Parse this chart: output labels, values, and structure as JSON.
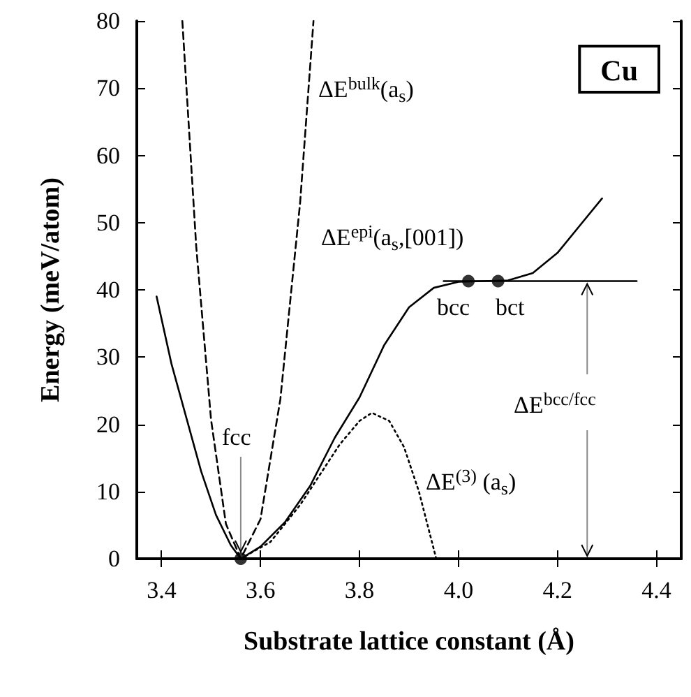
{
  "chart_data": {
    "type": "line",
    "xlabel": "Substrate lattice constant (Å)",
    "ylabel": "Energy (meV/atom)",
    "xlim": [
      3.35,
      4.45
    ],
    "xticks": [
      {
        "value": 3.4,
        "label": "3.4"
      },
      {
        "value": 3.6,
        "label": "3.6"
      },
      {
        "value": 3.8,
        "label": "3.8"
      },
      {
        "value": 4.0,
        "label": "4.0"
      },
      {
        "value": 4.2,
        "label": "4.2"
      },
      {
        "value": 4.4,
        "label": "4.4"
      }
    ],
    "ylim": [
      0,
      80
    ],
    "yticks": [
      0,
      10,
      20,
      30,
      40,
      50,
      60,
      70,
      80
    ],
    "grid": false,
    "series": [
      {
        "color": "#000000",
        "line_style": "solid",
        "marker": "none",
        "x": [
          3.39,
          3.42,
          3.45,
          3.48,
          3.51,
          3.54,
          3.56,
          3.6,
          3.65,
          3.7,
          3.75,
          3.8,
          3.85,
          3.9,
          3.95,
          4.0,
          4.05,
          4.1,
          4.15,
          4.2,
          4.25,
          4.29
        ],
        "values": [
          39,
          29,
          21,
          13,
          6.5,
          2,
          0,
          1.8,
          5.5,
          10.8,
          18,
          24,
          31.8,
          37.4,
          40.3,
          41.2,
          41.3,
          41.4,
          42.5,
          45.5,
          50,
          53.6
        ]
      },
      {
        "color": "#000000",
        "line_style": "dashed",
        "marker": "none",
        "x": [
          3.442,
          3.47,
          3.5,
          3.53,
          3.56,
          3.6,
          3.64,
          3.68,
          3.707
        ],
        "values": [
          80,
          46.5,
          20.7,
          5.2,
          0,
          5.9,
          23.7,
          53,
          80
        ]
      },
      {
        "color": "#000000",
        "line_style": "dotted",
        "marker": "none",
        "x": [
          3.56,
          3.62,
          3.68,
          3.72,
          3.76,
          3.8,
          3.825,
          3.86,
          3.89,
          3.92,
          3.955
        ],
        "values": [
          0,
          2.5,
          8,
          12.5,
          17,
          20.5,
          21.7,
          20.5,
          16.6,
          10,
          0
        ]
      },
      {
        "color": "#000000",
        "line_style": "solid",
        "marker": "none",
        "x": [
          3.97,
          4.36
        ],
        "values": [
          41.3,
          41.3
        ]
      },
      {
        "type": "scatter",
        "color": "#000000",
        "marker": "circle",
        "x": [
          3.56,
          4.02,
          4.08
        ],
        "values": [
          0,
          41.3,
          41.3
        ]
      }
    ],
    "annotations": [
      "Cu",
      "ΔE$^{bulk}$(a$_{s}$)",
      "ΔE$^{epi}$(a$_{s}$,[001])",
      "bcc",
      "bct",
      {
        "text": "fcc",
        "x": 3.56,
        "y": 0
      },
      "ΔE$^{(3)}$ (a$_{s}$)",
      {
        "text": "ΔE$^{bcc/fcc}$",
        "x": 4.26,
        "y": 41.3
      }
    ]
  }
}
